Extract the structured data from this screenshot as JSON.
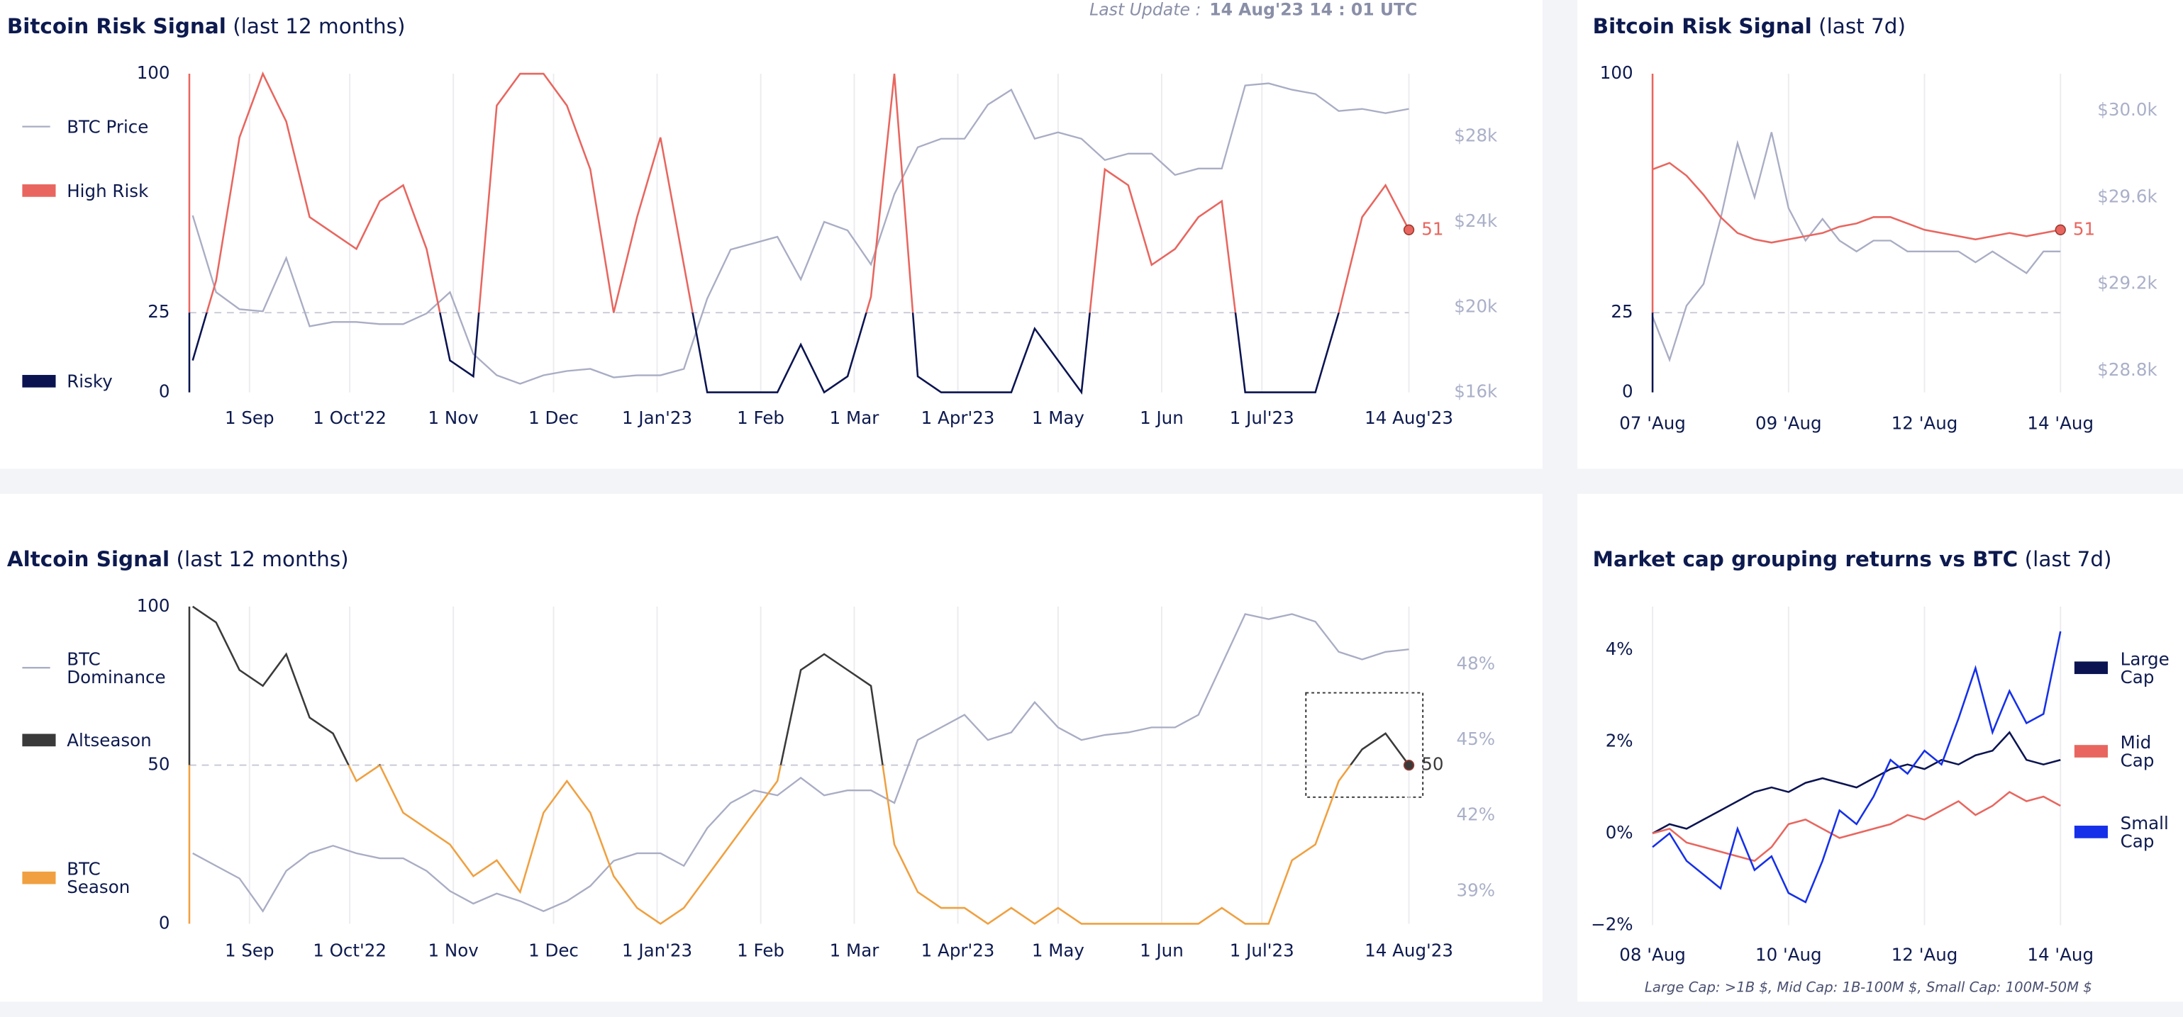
{
  "last_update_label": "Last Update :",
  "last_update_value": "14 Aug'23  14 : 01 UTC",
  "chart_data": [
    {
      "type": "line",
      "title": "Bitcoin Risk Signal",
      "subtitle": "(last 12 months)",
      "x": [
        "2022-08-15",
        "2022-08-22",
        "2022-08-29",
        "2022-09-05",
        "2022-09-12",
        "2022-09-19",
        "2022-09-26",
        "2022-10-03",
        "2022-10-10",
        "2022-10-17",
        "2022-10-24",
        "2022-10-31",
        "2022-11-07",
        "2022-11-14",
        "2022-11-21",
        "2022-11-28",
        "2022-12-05",
        "2022-12-12",
        "2022-12-19",
        "2022-12-26",
        "2023-01-02",
        "2023-01-09",
        "2023-01-16",
        "2023-01-23",
        "2023-01-30",
        "2023-02-06",
        "2023-02-13",
        "2023-02-20",
        "2023-02-27",
        "2023-03-06",
        "2023-03-13",
        "2023-03-20",
        "2023-03-27",
        "2023-04-03",
        "2023-04-10",
        "2023-04-17",
        "2023-04-24",
        "2023-05-01",
        "2023-05-08",
        "2023-05-15",
        "2023-05-22",
        "2023-05-29",
        "2023-06-05",
        "2023-06-12",
        "2023-06-19",
        "2023-06-26",
        "2023-07-03",
        "2023-07-10",
        "2023-07-17",
        "2023-07-24",
        "2023-07-31",
        "2023-08-07",
        "2023-08-14"
      ],
      "xlim": [
        "2022-08-14",
        "2023-08-14"
      ],
      "xticks": [
        {
          "value": "2022-09-01",
          "label": "1 Sep"
        },
        {
          "value": "2022-10-01",
          "label": "1 Oct'22"
        },
        {
          "value": "2022-11-01",
          "label": "1 Nov"
        },
        {
          "value": "2022-12-01",
          "label": "1 Dec"
        },
        {
          "value": "2023-01-01",
          "label": "1 Jan'23"
        },
        {
          "value": "2023-02-01",
          "label": "1 Feb"
        },
        {
          "value": "2023-03-01",
          "label": "1 Mar"
        },
        {
          "value": "2023-04-01",
          "label": "1 Apr'23"
        },
        {
          "value": "2023-05-01",
          "label": "1 May"
        },
        {
          "value": "2023-06-01",
          "label": "1 Jun"
        },
        {
          "value": "2023-07-01",
          "label": "1 Jul'23"
        },
        {
          "value": "2023-08-14",
          "label": "14 Aug'23"
        }
      ],
      "ylim": [
        0,
        100
      ],
      "yticks": [
        0,
        25,
        100
      ],
      "y2lim": [
        16000,
        30950
      ],
      "y2ticks": [
        {
          "value": 16000,
          "label": "$16k"
        },
        {
          "value": 20000,
          "label": "$20k"
        },
        {
          "value": 24000,
          "label": "$24k"
        },
        {
          "value": 28000,
          "label": "$28k"
        }
      ],
      "threshold": 25,
      "grid": true,
      "series": [
        {
          "name": "BTC Price",
          "color": "#a9adc4",
          "axis": "y2",
          "values": [
            24300,
            20700,
            19900,
            19800,
            22300,
            19100,
            19300,
            19300,
            19200,
            19200,
            19700,
            20700,
            17800,
            16800,
            16400,
            16800,
            17000,
            17100,
            16700,
            16800,
            16800,
            17100,
            20400,
            22700,
            23000,
            23300,
            21300,
            24000,
            23600,
            22000,
            25300,
            27500,
            27900,
            27900,
            29500,
            30200,
            27900,
            28200,
            27900,
            26900,
            27200,
            27200,
            26200,
            26500,
            26500,
            30400,
            30500,
            30200,
            30000,
            29200,
            29300,
            29100,
            29300
          ]
        },
        {
          "bands": [
            {
              "name": "High Risk",
              "color": "#e8665f"
            },
            {
              "name": "Risky",
              "color": "#0b1451"
            }
          ],
          "values": [
            10,
            35,
            80,
            100,
            85,
            55,
            50,
            45,
            60,
            65,
            45,
            10,
            5,
            90,
            100,
            100,
            90,
            70,
            25,
            55,
            80,
            40,
            0,
            0,
            0,
            0,
            15,
            0,
            5,
            30,
            100,
            5,
            0,
            0,
            0,
            0,
            20,
            10,
            0,
            70,
            65,
            40,
            45,
            55,
            60,
            0,
            0,
            0,
            0,
            25,
            55,
            65,
            51
          ]
        }
      ]
    },
    {
      "type": "line",
      "title": "Bitcoin Risk Signal",
      "subtitle": "(last 7d)",
      "categories": [
        "07 'Aug",
        null,
        null,
        null,
        null,
        null,
        null,
        null,
        "09 'Aug",
        null,
        null,
        null,
        null,
        null,
        null,
        null,
        "12 'Aug",
        null,
        null,
        null,
        null,
        null,
        null,
        null,
        "14 'Aug"
      ],
      "ylim": [
        0,
        100
      ],
      "yticks": [
        0,
        25,
        100
      ],
      "y2lim": [
        28700,
        30170
      ],
      "y2ticks": [
        {
          "value": 28800,
          "label": "$28.8k"
        },
        {
          "value": 29200,
          "label": "$29.2k"
        },
        {
          "value": 29600,
          "label": "$29.6k"
        },
        {
          "value": 30000,
          "label": "$30.0k"
        }
      ],
      "threshold": 25,
      "grid": true,
      "series": [
        {
          "color": "#a9adc4",
          "axis": "y2",
          "values": [
            29050,
            28850,
            29100,
            29200,
            29500,
            29850,
            29600,
            29900,
            29550,
            29400,
            29500,
            29400,
            29350,
            29400,
            29400,
            29350,
            29350,
            29350,
            29350,
            29300,
            29350,
            29300,
            29250,
            29350,
            29350
          ]
        },
        {
          "bands": [
            {
              "color": "#e8665f"
            },
            {
              "color": "#0b1451"
            }
          ],
          "values": [
            70,
            72,
            68,
            62,
            55,
            50,
            48,
            47,
            48,
            49,
            50,
            52,
            53,
            55,
            55,
            53,
            51,
            50,
            49,
            48,
            49,
            50,
            49,
            50,
            51
          ]
        }
      ]
    },
    {
      "type": "line",
      "title": "Altcoin Signal",
      "subtitle": "(last 12 months)",
      "x": [
        "2022-08-15",
        "2022-08-22",
        "2022-08-29",
        "2022-09-05",
        "2022-09-12",
        "2022-09-19",
        "2022-09-26",
        "2022-10-03",
        "2022-10-10",
        "2022-10-17",
        "2022-10-24",
        "2022-10-31",
        "2022-11-07",
        "2022-11-14",
        "2022-11-21",
        "2022-11-28",
        "2022-12-05",
        "2022-12-12",
        "2022-12-19",
        "2022-12-26",
        "2023-01-02",
        "2023-01-09",
        "2023-01-16",
        "2023-01-23",
        "2023-01-30",
        "2023-02-06",
        "2023-02-13",
        "2023-02-20",
        "2023-02-27",
        "2023-03-06",
        "2023-03-13",
        "2023-03-20",
        "2023-03-27",
        "2023-04-03",
        "2023-04-10",
        "2023-04-17",
        "2023-04-24",
        "2023-05-01",
        "2023-05-08",
        "2023-05-15",
        "2023-05-22",
        "2023-05-29",
        "2023-06-05",
        "2023-06-12",
        "2023-06-19",
        "2023-06-26",
        "2023-07-03",
        "2023-07-10",
        "2023-07-17",
        "2023-07-24",
        "2023-07-31",
        "2023-08-07",
        "2023-08-14"
      ],
      "xlim": [
        "2022-08-14",
        "2023-08-14"
      ],
      "xticks": [
        {
          "value": "2022-09-01",
          "label": "1 Sep"
        },
        {
          "value": "2022-10-01",
          "label": "1 Oct'22"
        },
        {
          "value": "2022-11-01",
          "label": "1 Nov"
        },
        {
          "value": "2022-12-01",
          "label": "1 Dec"
        },
        {
          "value": "2023-01-01",
          "label": "1 Jan'23"
        },
        {
          "value": "2023-02-01",
          "label": "1 Feb"
        },
        {
          "value": "2023-03-01",
          "label": "1 Mar"
        },
        {
          "value": "2023-04-01",
          "label": "1 Apr'23"
        },
        {
          "value": "2023-05-01",
          "label": "1 May"
        },
        {
          "value": "2023-06-01",
          "label": "1 Jun"
        },
        {
          "value": "2023-07-01",
          "label": "1 Jul'23"
        },
        {
          "value": "2023-08-14",
          "label": "14 Aug'23"
        }
      ],
      "ylim": [
        0,
        100
      ],
      "yticks": [
        0,
        50,
        100
      ],
      "y2lim": [
        37.7,
        50.3
      ],
      "y2ticks": [
        {
          "value": 39,
          "label": "39%"
        },
        {
          "value": 42,
          "label": "42%"
        },
        {
          "value": 45,
          "label": "45%"
        },
        {
          "value": 48,
          "label": "48%"
        }
      ],
      "threshold": 50,
      "grid": true,
      "series": [
        {
          "name": "BTC Dominance",
          "color": "#a9adc4",
          "axis": "y2",
          "values": [
            40.5,
            40.0,
            39.5,
            38.2,
            39.8,
            40.5,
            40.8,
            40.5,
            40.3,
            40.3,
            39.8,
            39.0,
            38.5,
            38.9,
            38.6,
            38.2,
            38.6,
            39.2,
            40.2,
            40.5,
            40.5,
            40.0,
            41.5,
            42.5,
            43.0,
            42.8,
            43.5,
            42.8,
            43.0,
            43.0,
            42.5,
            45.0,
            45.5,
            46.0,
            45.0,
            45.3,
            46.5,
            45.5,
            45.0,
            45.2,
            45.3,
            45.5,
            45.5,
            46.0,
            48.0,
            50.0,
            49.8,
            50.0,
            49.7,
            48.5,
            48.2,
            48.5,
            48.6
          ]
        },
        {
          "bands": [
            {
              "name": "Altseason",
              "color": "#3a3a3a"
            },
            {
              "name": "BTC Season",
              "color": "#f0a040"
            }
          ],
          "values": [
            100,
            95,
            80,
            75,
            85,
            65,
            60,
            45,
            50,
            35,
            30,
            25,
            15,
            20,
            10,
            35,
            45,
            35,
            15,
            5,
            0,
            5,
            15,
            25,
            35,
            45,
            80,
            85,
            80,
            75,
            25,
            10,
            5,
            5,
            0,
            5,
            0,
            5,
            0,
            0,
            0,
            0,
            0,
            0,
            5,
            0,
            0,
            20,
            25,
            45,
            55,
            60,
            50
          ]
        }
      ]
    },
    {
      "type": "line",
      "title": "Market cap grouping returns vs BTC",
      "subtitle": "(last 7d)",
      "categories": [
        "08 'Aug",
        null,
        null,
        null,
        null,
        null,
        null,
        null,
        "10 'Aug",
        null,
        null,
        null,
        null,
        null,
        null,
        null,
        "12 'Aug",
        null,
        null,
        null,
        null,
        null,
        null,
        null,
        "14 'Aug"
      ],
      "ylim": [
        -2,
        4.94
      ],
      "yticks": [
        {
          "value": -2,
          "label": "−2%"
        },
        {
          "value": 0,
          "label": "0%"
        },
        {
          "value": 2,
          "label": "2%"
        },
        {
          "value": 4,
          "label": "4%"
        }
      ],
      "grid": true,
      "note": "Large Cap: >1B $, Mid Cap: 1B-100M $, Small Cap: 100M-50M $",
      "series": [
        {
          "name": "Large Cap",
          "color": "#0b1451",
          "values": [
            0,
            0.2,
            0.1,
            0.3,
            0.5,
            0.7,
            0.9,
            1.0,
            0.9,
            1.1,
            1.2,
            1.1,
            1.0,
            1.2,
            1.4,
            1.5,
            1.4,
            1.6,
            1.5,
            1.7,
            1.8,
            2.2,
            1.6,
            1.5,
            1.6
          ]
        },
        {
          "name": "Mid Cap",
          "color": "#e8665f",
          "values": [
            0,
            0.1,
            -0.2,
            -0.3,
            -0.4,
            -0.5,
            -0.6,
            -0.3,
            0.2,
            0.3,
            0.1,
            -0.1,
            0.0,
            0.1,
            0.2,
            0.4,
            0.3,
            0.5,
            0.7,
            0.4,
            0.6,
            0.9,
            0.7,
            0.8,
            0.6
          ]
        },
        {
          "name": "Small Cap",
          "color": "#1530e8",
          "values": [
            -0.3,
            0.0,
            -0.6,
            -0.9,
            -1.2,
            0.1,
            -0.8,
            -0.5,
            -1.3,
            -1.5,
            -0.6,
            0.5,
            0.2,
            0.8,
            1.6,
            1.3,
            1.8,
            1.5,
            2.5,
            3.6,
            2.2,
            3.1,
            2.4,
            2.6,
            4.4
          ]
        }
      ]
    }
  ]
}
